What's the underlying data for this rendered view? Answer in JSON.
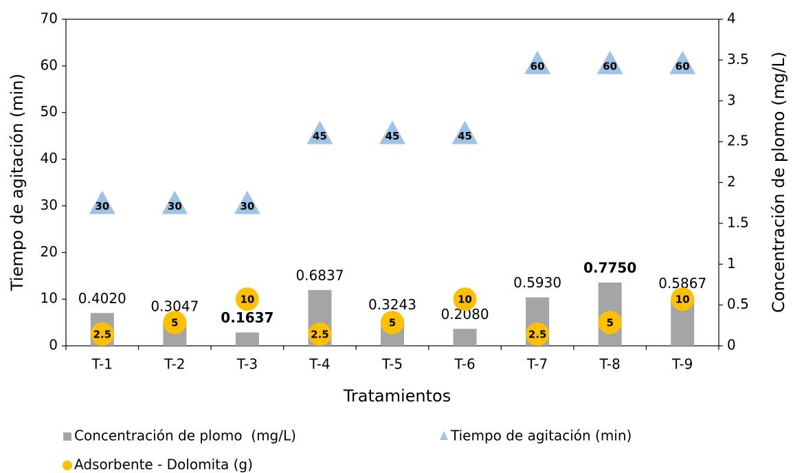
{
  "chart_data": {
    "type": "combo",
    "x_label": "Tratamientos",
    "y_label": "Tiempo de agitación (min)",
    "y2_label": "Concentración de plomo (mg/L)",
    "categories": [
      "T-1",
      "T-2",
      "T-3",
      "T-4",
      "T-5",
      "T-6",
      "T-7",
      "T-8",
      "T-9"
    ],
    "ylim": [
      0,
      70
    ],
    "yticks": [
      0,
      10,
      20,
      30,
      40,
      50,
      60,
      70
    ],
    "y2lim": [
      0,
      4
    ],
    "y2ticks": [
      0,
      0.5,
      1,
      1.5,
      2,
      2.5,
      3,
      3.5,
      4
    ],
    "series": [
      {
        "name": "Concentración de plomo  (mg/L)",
        "type": "bar",
        "axis": "y2",
        "color": "#a5a5a5",
        "values": [
          0.402,
          0.3047,
          0.1637,
          0.6837,
          0.3243,
          0.208,
          0.593,
          0.775,
          0.5867
        ],
        "value_labels": [
          "0.4020",
          "0.3047",
          "0.1637",
          "0.6837",
          "0.3243",
          "0.2080",
          "0.5930",
          "0.7750",
          "0.5867"
        ]
      },
      {
        "name": "Tiempo de agitación (min)",
        "type": "triangle",
        "color": "#9dc3e6",
        "values": [
          30,
          30,
          30,
          45,
          45,
          45,
          60,
          60,
          60
        ]
      },
      {
        "name": "Adsorbente - Dolomita (g)",
        "type": "circle",
        "color": "#ffc000",
        "values": [
          2.5,
          5,
          10,
          2.5,
          5,
          10,
          2.5,
          5,
          10
        ]
      }
    ]
  }
}
